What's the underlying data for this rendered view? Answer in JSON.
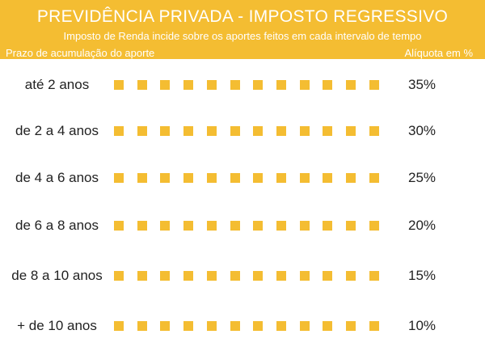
{
  "header": {
    "title": "PREVIDÊNCIA PRIVADA - IMPOSTO REGRESSIVO",
    "subtitle": "Imposto de Renda incide sobre os aportes feitos em cada intervalo de tempo",
    "col_left": "Prazo de acumulação do aporte",
    "col_right": "Alíquota em %"
  },
  "colors": {
    "accent": "#f4bd32",
    "text": "#222222",
    "header_text": "#ffffff"
  },
  "rows": [
    {
      "label": "até 2 anos",
      "rate": "35%"
    },
    {
      "label": "de 2 a 4 anos",
      "rate": "30%"
    },
    {
      "label": "de 4 a 6 anos",
      "rate": "25%"
    },
    {
      "label": "de 6 a 8 anos",
      "rate": "20%"
    },
    {
      "label": "de 8 a 10 anos",
      "rate": "15%"
    },
    {
      "label": "+ de 10 anos",
      "rate": "10%"
    }
  ]
}
